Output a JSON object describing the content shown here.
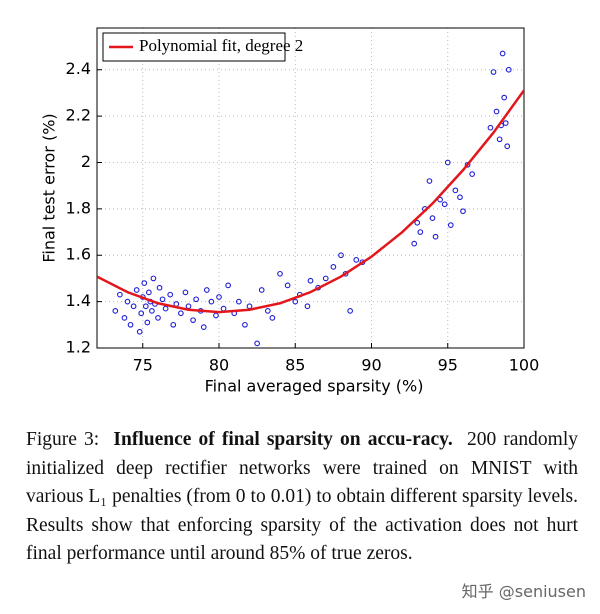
{
  "chart_data": {
    "type": "scatter",
    "xlabel": "Final averaged sparsity (%)",
    "ylabel": "Final test error (%)",
    "xlim": [
      72,
      100
    ],
    "ylim": [
      1.2,
      2.58
    ],
    "xticks": [
      75,
      80,
      85,
      90,
      95,
      100
    ],
    "yticks": [
      1.2,
      1.4,
      1.6,
      1.8,
      2,
      2.2,
      2.4
    ],
    "grid": true,
    "legend": "upper left",
    "series": [
      {
        "style": "markers",
        "color": "#1f1fd6",
        "x": [
          73.2,
          73.5,
          73.8,
          74.0,
          74.2,
          74.4,
          74.6,
          74.8,
          74.9,
          75.0,
          75.1,
          75.2,
          75.3,
          75.4,
          75.5,
          75.6,
          75.7,
          75.8,
          76.0,
          76.1,
          76.3,
          76.5,
          76.8,
          77.0,
          77.2,
          77.5,
          77.8,
          78.0,
          78.3,
          78.5,
          78.8,
          79.0,
          79.2,
          79.5,
          79.8,
          80.0,
          80.3,
          80.6,
          81.0,
          81.3,
          81.7,
          82.0,
          82.5,
          82.8,
          83.2,
          83.5,
          84.0,
          84.5,
          85.0,
          85.3,
          85.8,
          86.0,
          86.5,
          87.0,
          87.5,
          88.0,
          88.3,
          88.6,
          89.0,
          89.4,
          92.8,
          93.0,
          93.2,
          93.5,
          93.8,
          94.0,
          94.2,
          94.5,
          94.8,
          95.0,
          95.2,
          95.5,
          95.8,
          96.0,
          96.3,
          96.6,
          97.8,
          98.0,
          98.2,
          98.4,
          98.6,
          98.7,
          98.8,
          99.0,
          98.5,
          98.9
        ],
        "values": [
          1.36,
          1.43,
          1.33,
          1.4,
          1.3,
          1.38,
          1.45,
          1.27,
          1.35,
          1.42,
          1.48,
          1.38,
          1.31,
          1.44,
          1.4,
          1.36,
          1.5,
          1.39,
          1.33,
          1.46,
          1.41,
          1.37,
          1.43,
          1.3,
          1.39,
          1.35,
          1.44,
          1.38,
          1.32,
          1.41,
          1.36,
          1.29,
          1.45,
          1.4,
          1.34,
          1.42,
          1.37,
          1.47,
          1.35,
          1.4,
          1.3,
          1.38,
          1.22,
          1.45,
          1.36,
          1.33,
          1.52,
          1.47,
          1.4,
          1.43,
          1.38,
          1.49,
          1.46,
          1.5,
          1.55,
          1.6,
          1.52,
          1.36,
          1.58,
          1.57,
          1.65,
          1.74,
          1.7,
          1.8,
          1.92,
          1.76,
          1.68,
          1.84,
          1.82,
          2.0,
          1.73,
          1.88,
          1.85,
          1.79,
          1.99,
          1.95,
          2.15,
          2.39,
          2.22,
          2.1,
          2.47,
          2.28,
          2.17,
          2.4,
          2.16,
          2.07
        ]
      },
      {
        "name": "Polynomial fit, degree 2",
        "style": "line",
        "color": "#e3171b",
        "x": [
          72,
          74,
          76,
          78,
          80,
          82,
          84,
          86,
          88,
          90,
          92,
          94,
          96,
          98,
          100
        ],
        "values": [
          1.508,
          1.441,
          1.393,
          1.365,
          1.355,
          1.365,
          1.393,
          1.441,
          1.508,
          1.594,
          1.699,
          1.823,
          1.967,
          2.129,
          2.311
        ]
      }
    ]
  },
  "caption": {
    "label": "Figure 3:",
    "title": "Influence of final sparsity on accu-racy.",
    "text": "200 randomly initialized deep rectifier networks were trained on MNIST with various L₁ penalties (from 0 to 0.01) to obtain different sparsity levels. Results show that enforcing sparsity of the activation does not hurt final performance until around 85% of true zeros."
  },
  "watermark": "知乎 @seniusen"
}
